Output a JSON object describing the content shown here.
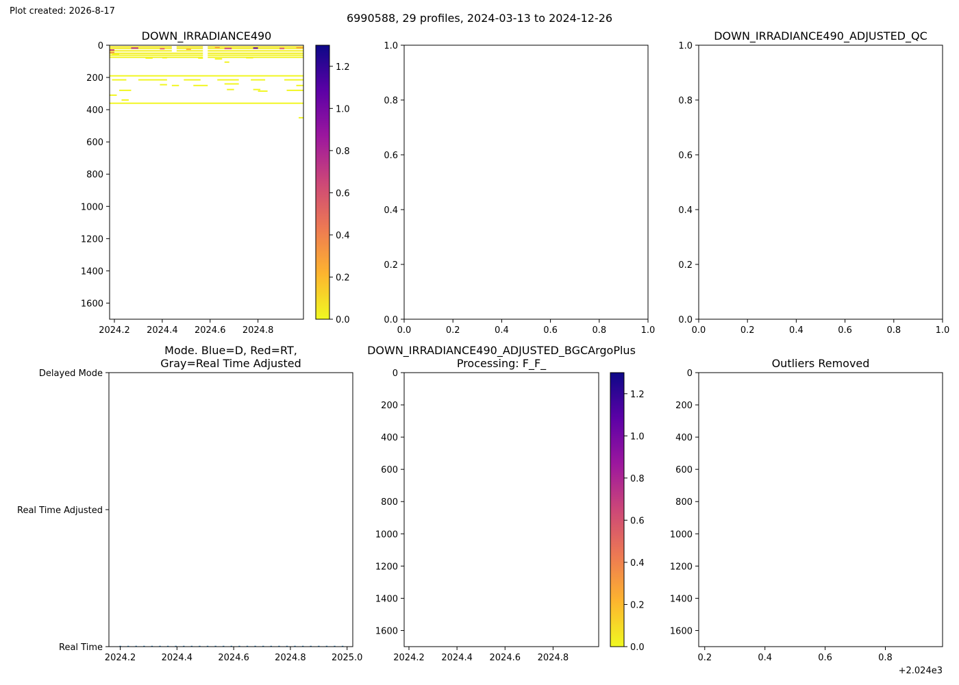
{
  "figure": {
    "created_label": "Plot created: 2026-8-17",
    "suptitle": "6990588, 29 profiles, 2024-03-13 to 2024-12-26"
  },
  "colormap": {
    "name": "plasma_r",
    "stops": [
      "#f0f921",
      "#fdb42f",
      "#ed7953",
      "#cc4778",
      "#9c179e",
      "#5c01a6",
      "#0d0887"
    ]
  },
  "chart_data": [
    {
      "id": "raw",
      "type": "heatmap",
      "title": "DOWN_IRRADIANCE490",
      "xlim": [
        2024.18,
        2024.99
      ],
      "ylim": [
        1700,
        0
      ],
      "xticks": [
        2024.2,
        2024.4,
        2024.6,
        2024.8
      ],
      "xtick_labels": [
        "2024.2",
        "2024.4",
        "2024.6",
        "2024.8"
      ],
      "yticks": [
        0,
        200,
        400,
        600,
        800,
        1000,
        1200,
        1400,
        1600
      ],
      "ytick_labels": [
        "0",
        "200",
        "400",
        "600",
        "800",
        "1000",
        "1200",
        "1400",
        "1600"
      ],
      "colorbar": {
        "vmin": 0,
        "vmax": 1.3,
        "ticks": [
          0,
          0.2,
          0.4,
          0.6,
          0.8,
          1.0,
          1.2
        ],
        "tick_labels": [
          "0.0",
          "0.2",
          "0.4",
          "0.6",
          "0.8",
          "1.0",
          "1.2"
        ]
      },
      "segments": [
        {
          "x0": 2024.18,
          "x1": 2024.99,
          "depth": 10,
          "value": 0.05
        },
        {
          "x0": 2024.18,
          "x1": 2024.99,
          "depth": 20,
          "value": 0.04
        },
        {
          "x0": 2024.18,
          "x1": 2024.99,
          "depth": 35,
          "value": 0.03
        },
        {
          "x0": 2024.18,
          "x1": 2024.99,
          "depth": 50,
          "value": 0.03
        },
        {
          "x0": 2024.18,
          "x1": 2024.99,
          "depth": 62,
          "value": 0.02
        },
        {
          "x0": 2024.18,
          "x1": 2024.99,
          "depth": 75,
          "value": 0.02
        },
        {
          "x0": 2024.18,
          "x1": 2024.99,
          "depth": 190,
          "value": 0.01
        },
        {
          "x0": 2024.18,
          "x1": 2024.99,
          "depth": 360,
          "value": 0.01
        },
        {
          "x0": 2024.18,
          "x1": 2024.2,
          "depth": 30,
          "value": 0.7
        },
        {
          "x0": 2024.18,
          "x1": 2024.2,
          "depth": 45,
          "value": 0.35
        },
        {
          "x0": 2024.27,
          "x1": 2024.3,
          "depth": 18,
          "value": 0.75
        },
        {
          "x0": 2024.39,
          "x1": 2024.41,
          "depth": 22,
          "value": 0.5
        },
        {
          "x0": 2024.5,
          "x1": 2024.52,
          "depth": 25,
          "value": 0.25
        },
        {
          "x0": 2024.62,
          "x1": 2024.64,
          "depth": 14,
          "value": 0.3
        },
        {
          "x0": 2024.66,
          "x1": 2024.69,
          "depth": 20,
          "value": 0.65
        },
        {
          "x0": 2024.78,
          "x1": 2024.8,
          "depth": 18,
          "value": 1.1
        },
        {
          "x0": 2024.89,
          "x1": 2024.91,
          "depth": 20,
          "value": 0.55
        },
        {
          "x0": 2024.96,
          "x1": 2024.99,
          "depth": 15,
          "value": 0.3
        },
        {
          "x0": 2024.19,
          "x1": 2024.25,
          "depth": 215,
          "value": 0.01
        },
        {
          "x0": 2024.22,
          "x1": 2024.27,
          "depth": 280,
          "value": 0.01
        },
        {
          "x0": 2024.18,
          "x1": 2024.21,
          "depth": 310,
          "value": 0.01
        },
        {
          "x0": 2024.23,
          "x1": 2024.26,
          "depth": 340,
          "value": 0.01
        },
        {
          "x0": 2024.3,
          "x1": 2024.42,
          "depth": 215,
          "value": 0.01
        },
        {
          "x0": 2024.39,
          "x1": 2024.42,
          "depth": 245,
          "value": 0.01
        },
        {
          "x0": 2024.44,
          "x1": 2024.47,
          "depth": 250,
          "value": 0.01
        },
        {
          "x0": 2024.49,
          "x1": 2024.56,
          "depth": 215,
          "value": 0.01
        },
        {
          "x0": 2024.53,
          "x1": 2024.59,
          "depth": 250,
          "value": 0.01
        },
        {
          "x0": 2024.63,
          "x1": 2024.72,
          "depth": 215,
          "value": 0.01
        },
        {
          "x0": 2024.66,
          "x1": 2024.72,
          "depth": 240,
          "value": 0.01
        },
        {
          "x0": 2024.67,
          "x1": 2024.7,
          "depth": 275,
          "value": 0.01
        },
        {
          "x0": 2024.77,
          "x1": 2024.83,
          "depth": 215,
          "value": 0.01
        },
        {
          "x0": 2024.78,
          "x1": 2024.81,
          "depth": 275,
          "value": 0.01
        },
        {
          "x0": 2024.8,
          "x1": 2024.84,
          "depth": 285,
          "value": 0.01
        },
        {
          "x0": 2024.91,
          "x1": 2024.99,
          "depth": 215,
          "value": 0.01
        },
        {
          "x0": 2024.92,
          "x1": 2024.99,
          "depth": 280,
          "value": 0.01
        },
        {
          "x0": 2024.96,
          "x1": 2024.99,
          "depth": 250,
          "value": 0.01
        },
        {
          "x0": 2024.97,
          "x1": 2024.99,
          "depth": 450,
          "value": 0.01
        },
        {
          "x0": 2024.19,
          "x1": 2024.22,
          "depth": 55,
          "value": 0.02
        },
        {
          "x0": 2024.33,
          "x1": 2024.36,
          "depth": 80,
          "value": 0.02
        },
        {
          "x0": 2024.4,
          "x1": 2024.42,
          "depth": 78,
          "value": 0.02
        },
        {
          "x0": 2024.55,
          "x1": 2024.58,
          "depth": 80,
          "value": 0.02
        },
        {
          "x0": 2024.62,
          "x1": 2024.65,
          "depth": 85,
          "value": 0.02
        },
        {
          "x0": 2024.66,
          "x1": 2024.68,
          "depth": 105,
          "value": 0.02
        },
        {
          "x0": 2024.75,
          "x1": 2024.78,
          "depth": 78,
          "value": 0.02
        }
      ],
      "gaps": [
        {
          "x0": 2024.57,
          "x1": 2024.59,
          "d0": 0,
          "d1": 90
        },
        {
          "x0": 2024.44,
          "x1": 2024.46,
          "d0": 0,
          "d1": 40
        }
      ]
    },
    {
      "id": "empty1",
      "type": "scatter",
      "title": "",
      "xlim": [
        0,
        1
      ],
      "ylim": [
        0,
        1
      ],
      "xticks": [
        0,
        0.2,
        0.4,
        0.6,
        0.8,
        1.0
      ],
      "xtick_labels": [
        "0.0",
        "0.2",
        "0.4",
        "0.6",
        "0.8",
        "1.0"
      ],
      "yticks": [
        0,
        0.2,
        0.4,
        0.6,
        0.8,
        1.0
      ],
      "ytick_labels": [
        "0.0",
        "0.2",
        "0.4",
        "0.6",
        "0.8",
        "1.0"
      ]
    },
    {
      "id": "qc",
      "type": "scatter",
      "title": "DOWN_IRRADIANCE490_ADJUSTED_QC",
      "xlim": [
        0,
        1
      ],
      "ylim": [
        0,
        1
      ],
      "xticks": [
        0,
        0.2,
        0.4,
        0.6,
        0.8,
        1.0
      ],
      "xtick_labels": [
        "0.0",
        "0.2",
        "0.4",
        "0.6",
        "0.8",
        "1.0"
      ],
      "yticks": [
        0,
        0.2,
        0.4,
        0.6,
        0.8,
        1.0
      ],
      "ytick_labels": [
        "0.0",
        "0.2",
        "0.4",
        "0.6",
        "0.8",
        "1.0"
      ]
    },
    {
      "id": "mode",
      "type": "scatter",
      "title_lines": [
        "Mode. Blue=D, Red=RT,",
        "Gray=Real Time Adjusted"
      ],
      "xlim": [
        2024.16,
        2025.02
      ],
      "ylim": [
        0,
        2
      ],
      "xticks": [
        2024.2,
        2024.4,
        2024.6,
        2024.8,
        2025.0
      ],
      "xtick_labels": [
        "2024.2",
        "2024.4",
        "2024.6",
        "2024.8",
        "2025.0"
      ],
      "yticks": [
        0,
        1,
        2
      ],
      "ytick_labels": [
        "Real Time",
        "Real Time Adjusted",
        "Delayed Mode"
      ],
      "point_color": "#1f77b4",
      "points_x": [
        2024.2,
        2024.228,
        2024.256,
        2024.284,
        2024.312,
        2024.34,
        2024.368,
        2024.396,
        2024.424,
        2024.452,
        2024.48,
        2024.508,
        2024.536,
        2024.564,
        2024.592,
        2024.62,
        2024.648,
        2024.676,
        2024.704,
        2024.732,
        2024.76,
        2024.788,
        2024.816,
        2024.844,
        2024.872,
        2024.9,
        2024.928,
        2024.956,
        2024.984
      ],
      "points_y": 0
    },
    {
      "id": "bgc",
      "type": "heatmap",
      "title_lines": [
        "DOWN_IRRADIANCE490_ADJUSTED_BGCArgoPlus",
        "Processing: F_F_"
      ],
      "xlim": [
        2024.18,
        2024.99
      ],
      "ylim": [
        1700,
        0
      ],
      "xticks": [
        2024.2,
        2024.4,
        2024.6,
        2024.8
      ],
      "xtick_labels": [
        "2024.2",
        "2024.4",
        "2024.6",
        "2024.8"
      ],
      "yticks": [
        0,
        200,
        400,
        600,
        800,
        1000,
        1200,
        1400,
        1600
      ],
      "ytick_labels": [
        "0",
        "200",
        "400",
        "600",
        "800",
        "1000",
        "1200",
        "1400",
        "1600"
      ],
      "colorbar": {
        "vmin": 0,
        "vmax": 1.3,
        "ticks": [
          0,
          0.2,
          0.4,
          0.6,
          0.8,
          1.0,
          1.2
        ],
        "tick_labels": [
          "0.0",
          "0.2",
          "0.4",
          "0.6",
          "0.8",
          "1.0",
          "1.2"
        ]
      },
      "segments": [],
      "gaps": []
    },
    {
      "id": "outliers",
      "type": "scatter",
      "title": "Outliers Removed",
      "xlim": [
        2024.18,
        2024.99
      ],
      "ylim": [
        1700,
        0
      ],
      "xticks": [
        2024.2,
        2024.4,
        2024.6,
        2024.8
      ],
      "xtick_labels": [
        "0.2",
        "0.4",
        "0.6",
        "0.8"
      ],
      "yticks": [
        0,
        200,
        400,
        600,
        800,
        1000,
        1200,
        1400,
        1600
      ],
      "ytick_labels": [
        "0",
        "200",
        "400",
        "600",
        "800",
        "1000",
        "1200",
        "1400",
        "1600"
      ],
      "offset_label": "+2.024e3"
    }
  ]
}
